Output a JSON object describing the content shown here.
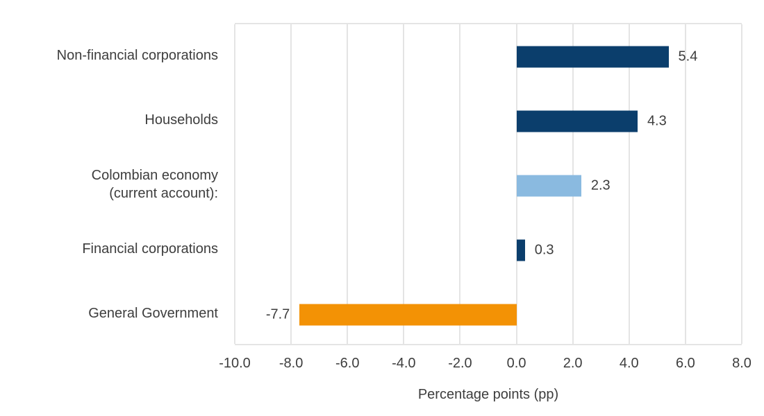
{
  "chart_data": {
    "type": "bar",
    "orientation": "horizontal",
    "categories": [
      "Non-financial corporations",
      "Households",
      "Colombian economy\n(current account):",
      "Financial corporations",
      "General Government"
    ],
    "values": [
      5.4,
      4.3,
      2.3,
      0.3,
      -7.7
    ],
    "value_labels": [
      "5.4",
      "4.3",
      "2.3",
      "0.3",
      "-7.7"
    ],
    "bar_colors": [
      "#0b3e6c",
      "#0b3e6c",
      "#8abae0",
      "#0b3e6c",
      "#f39205"
    ],
    "xlabel": "Percentage points (pp)",
    "xlim": [
      -10,
      8
    ],
    "x_ticks": [
      -10,
      -8,
      -6,
      -4,
      -2,
      0,
      2,
      4,
      6,
      8
    ],
    "x_tick_labels": [
      "-10.0",
      "-8.0",
      "-6.0",
      "-4.0",
      "-2.0",
      "0.0",
      "2.0",
      "4.0",
      "6.0",
      "8.0"
    ],
    "grid": "vertical",
    "legend": "none",
    "colors": {
      "dark_blue": "#0b3e6c",
      "light_blue": "#8abae0",
      "orange": "#f39205",
      "gridline": "#e4e4e4",
      "text": "#3d3d3d",
      "background": "#ffffff"
    }
  }
}
